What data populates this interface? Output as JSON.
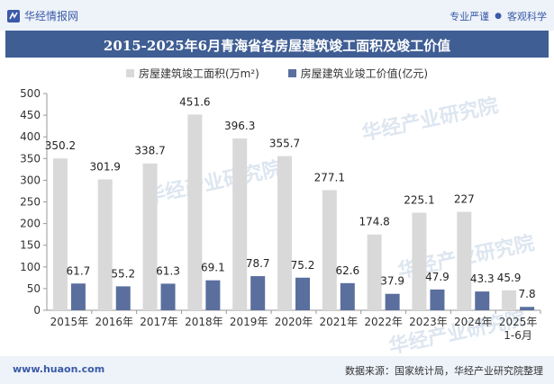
{
  "header": {
    "brand": "华经情报网",
    "slogan_left": "专业严谨",
    "slogan_right": "客观科学"
  },
  "title": "2015-2025年6月青海省各房屋建筑竣工面积及竣工价值",
  "watermark": "华经产业研究院",
  "footer": {
    "site": "www.huaon.com",
    "source": "数据来源：国家统计局，华经产业研究院整理"
  },
  "colors": {
    "area": "#d9d9d9",
    "value": "#5a6f9e",
    "title_bg": "#3f5e94"
  },
  "chart_data": {
    "type": "bar",
    "categories": [
      "2015年",
      "2016年",
      "2017年",
      "2018年",
      "2019年",
      "2020年",
      "2021年",
      "2022年",
      "2023年",
      "2024年",
      "2025年\n1-6月"
    ],
    "series": [
      {
        "name": "房屋建筑竣工面积(万m²)",
        "values": [
          350.2,
          301.9,
          338.7,
          451.6,
          396.3,
          355.7,
          277.1,
          174.8,
          225.1,
          227,
          45.9
        ]
      },
      {
        "name": "房屋建筑业竣工价值(亿元)",
        "values": [
          61.7,
          55.2,
          61.3,
          69.1,
          78.7,
          75.2,
          62.6,
          37.9,
          47.9,
          43.3,
          7.8
        ]
      }
    ],
    "ylim": [
      0,
      500
    ],
    "yticks": [
      0,
      50,
      100,
      150,
      200,
      250,
      300,
      350,
      400,
      450,
      500
    ],
    "legend_position": "top",
    "grid": false
  }
}
